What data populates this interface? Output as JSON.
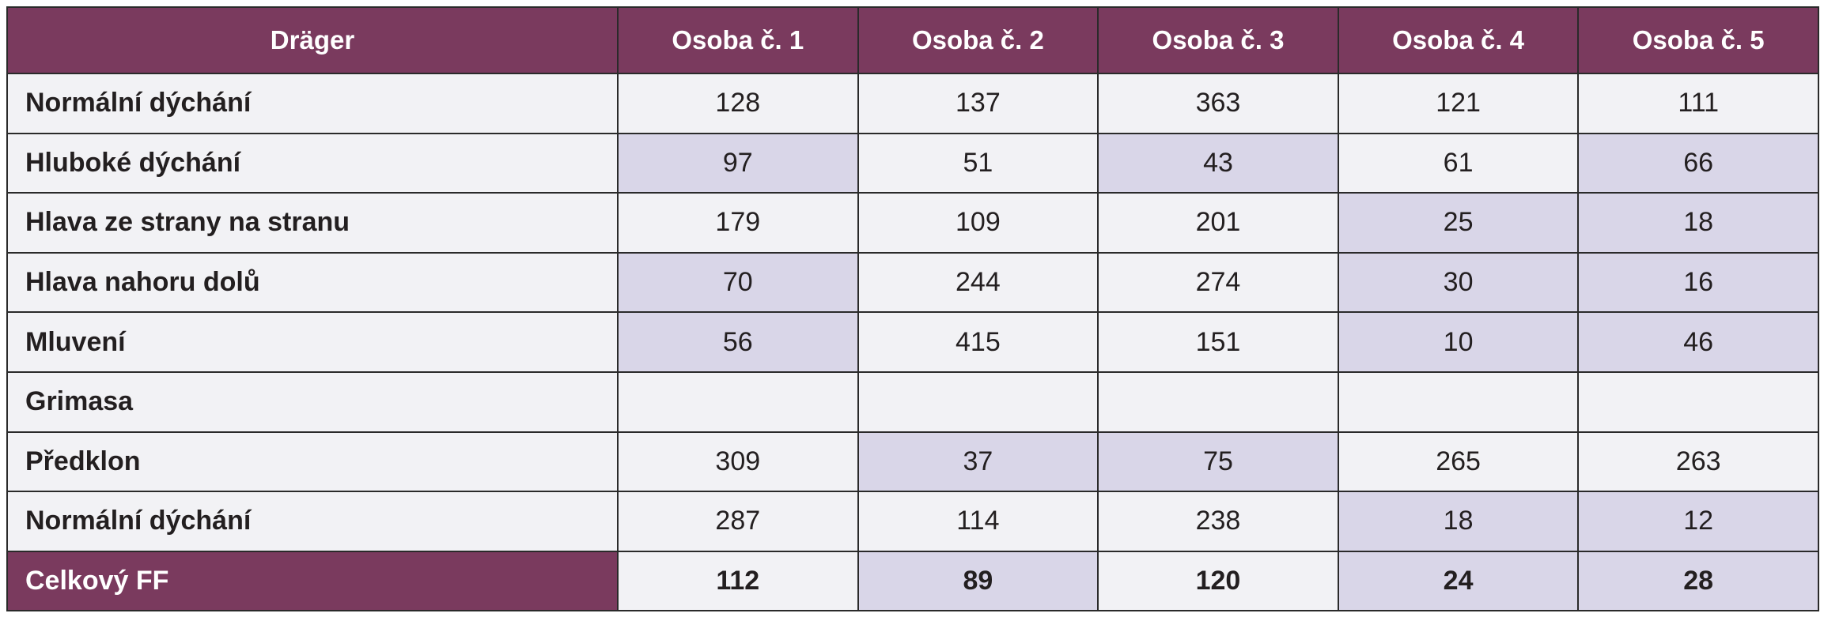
{
  "colors": {
    "header_bg": "#7a3a5e",
    "header_text": "#ffffff",
    "cell_bg": "#f2f2f5",
    "highlight_bg": "#d9d6e8"
  },
  "table": {
    "headers": [
      "Dräger",
      "Osoba č. 1",
      "Osoba č. 2",
      "Osoba č. 3",
      "Osoba č. 4",
      "Osoba č. 5"
    ],
    "rows": [
      {
        "label": "Normální dýchání",
        "values": [
          "128",
          "137",
          "363",
          "121",
          "111"
        ],
        "highlight": [
          false,
          false,
          false,
          false,
          false
        ]
      },
      {
        "label": "Hluboké dýchání",
        "values": [
          "97",
          "51",
          "43",
          "61",
          "66"
        ],
        "highlight": [
          true,
          false,
          true,
          false,
          true
        ]
      },
      {
        "label": "Hlava ze strany na stranu",
        "values": [
          "179",
          "109",
          "201",
          "25",
          "18"
        ],
        "highlight": [
          false,
          false,
          false,
          true,
          true
        ]
      },
      {
        "label": "Hlava nahoru dolů",
        "values": [
          "70",
          "244",
          "274",
          "30",
          "16"
        ],
        "highlight": [
          true,
          false,
          false,
          true,
          true
        ]
      },
      {
        "label": "Mluvení",
        "values": [
          "56",
          "415",
          "151",
          "10",
          "46"
        ],
        "highlight": [
          true,
          false,
          false,
          true,
          true
        ]
      },
      {
        "label": "Grimasa",
        "values": [
          "",
          "",
          "",
          "",
          ""
        ],
        "highlight": [
          false,
          false,
          false,
          false,
          false
        ]
      },
      {
        "label": "Předklon",
        "values": [
          "309",
          "37",
          "75",
          "265",
          "263"
        ],
        "highlight": [
          false,
          true,
          true,
          false,
          false
        ]
      },
      {
        "label": "Normální dýchání",
        "values": [
          "287",
          "114",
          "238",
          "18",
          "12"
        ],
        "highlight": [
          false,
          false,
          false,
          true,
          true
        ]
      }
    ],
    "total": {
      "label": "Celkový FF",
      "values": [
        "112",
        "89",
        "120",
        "24",
        "28"
      ],
      "highlight": [
        false,
        true,
        false,
        true,
        true
      ]
    }
  }
}
